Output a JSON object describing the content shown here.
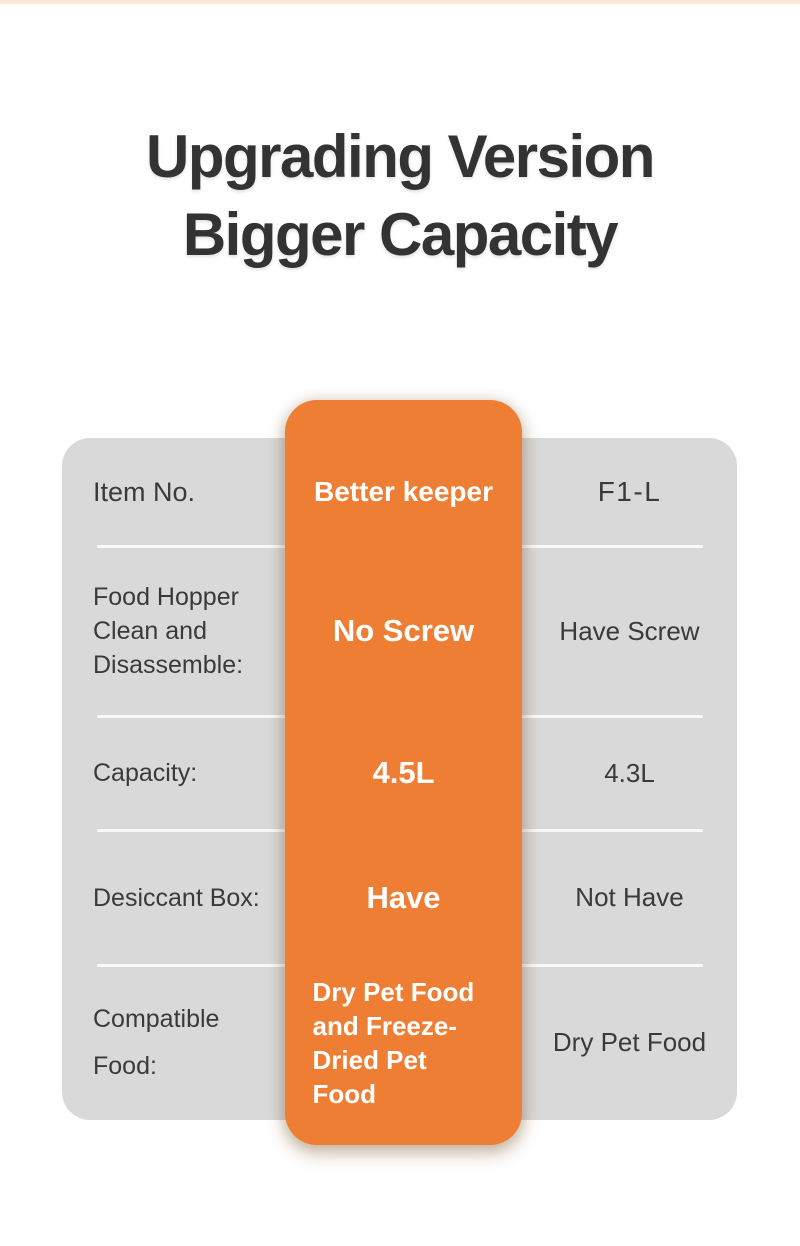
{
  "header": {
    "title_line1": "Upgrading Version",
    "title_line2": "Bigger Capacity"
  },
  "table": {
    "header_row": {
      "feature": "Item No.",
      "product": "Better keeper",
      "competitor": "F1-L"
    },
    "rows": [
      {
        "feature": "Food Hopper Clean and Disassemble:",
        "product": "No Screw",
        "competitor": "Have Screw"
      },
      {
        "feature": "Capacity:",
        "product": "4.5L",
        "competitor": "4.3L"
      },
      {
        "feature": "Desiccant Box:",
        "product": "Have",
        "competitor": "Not Have"
      },
      {
        "feature": "Compatible Food:",
        "product": "Dry Pet Food and Freeze-Dried Pet Food",
        "competitor": "Dry Pet Food"
      }
    ],
    "colors": {
      "highlight_column": "#EF7E35",
      "panel_background": "#D9D9D9",
      "dark_text": "#3A3A3A",
      "light_text": "#FFFFFF",
      "top_strip": "#FBE7D5",
      "divider": "#F9F9F9"
    }
  }
}
